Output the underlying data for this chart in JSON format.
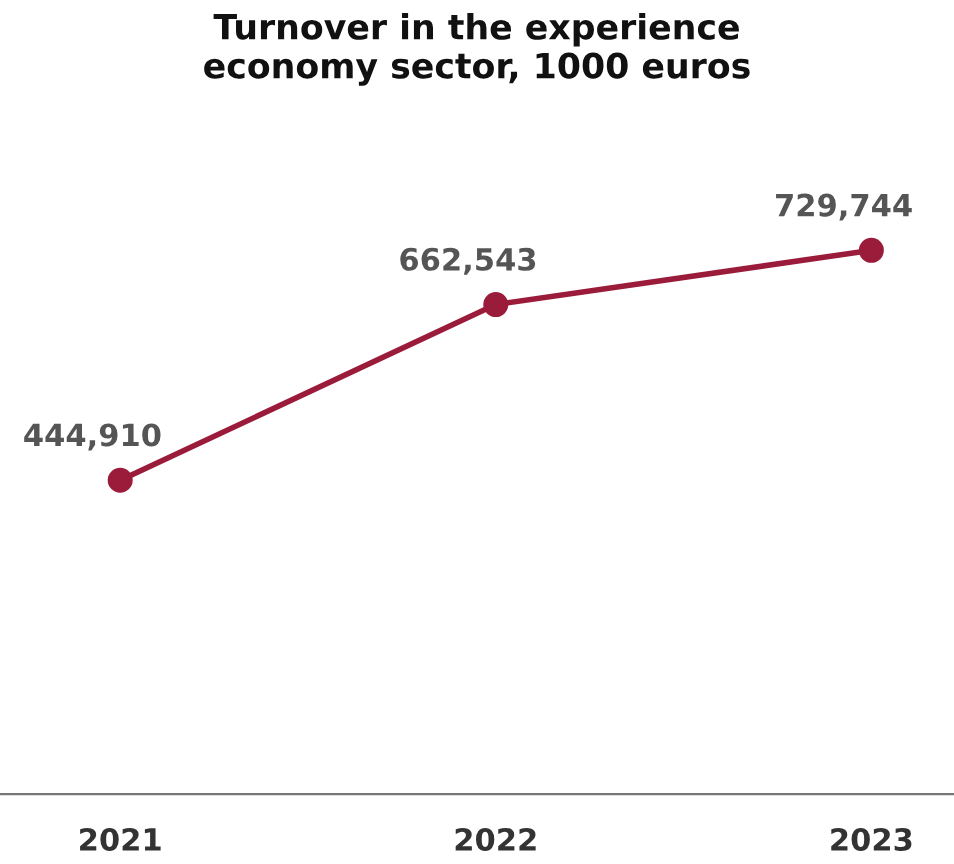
{
  "chart_data": {
    "type": "line",
    "title": "Turnover in the experience\neconomy sector, 1000 euros",
    "categories": [
      "2021",
      "2022",
      "2023"
    ],
    "series": [
      {
        "color": "#9b1b3a",
        "values": [
          444910,
          662543,
          729744
        ],
        "value_labels": [
          "444,910",
          "662,543",
          "729,744"
        ]
      }
    ],
    "tick_labels": "x",
    "grid": false,
    "legend": false,
    "marker": "circle",
    "line_style": "solid"
  }
}
